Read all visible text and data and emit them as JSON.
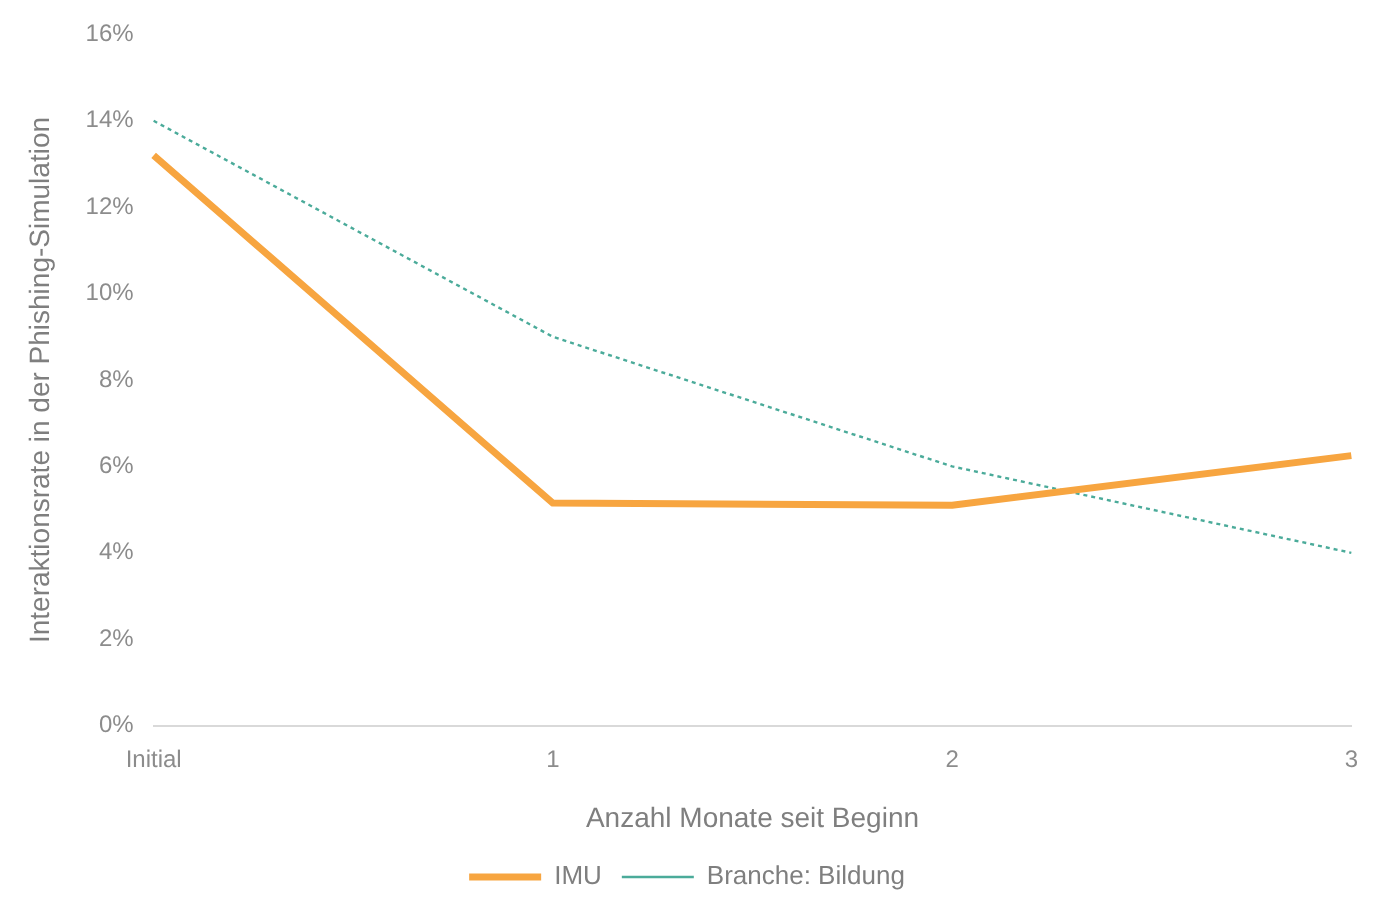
{
  "chart_data": {
    "type": "line",
    "xlabel": "Anzahl Monate seit Beginn",
    "ylabel": "Interaktionsrate in der Phishing-Simulation",
    "categories": [
      "Initial",
      "1",
      "2",
      "3"
    ],
    "series": [
      {
        "name": "IMU",
        "color": "#f7a540",
        "values": [
          13.2,
          5.15,
          5.1,
          6.25
        ],
        "line_style": "solid"
      },
      {
        "name": "Branche: Bildung",
        "color": "#4bab9a",
        "values": [
          14,
          9,
          6,
          4
        ],
        "line_style": "dotted"
      }
    ],
    "ylim": [
      0,
      16
    ],
    "yticks": [
      {
        "value": 0,
        "label": "0%"
      },
      {
        "value": 2,
        "label": "2%"
      },
      {
        "value": 4,
        "label": "4%"
      },
      {
        "value": 6,
        "label": "6%"
      },
      {
        "value": 8,
        "label": "8%"
      },
      {
        "value": 10,
        "label": "10%"
      },
      {
        "value": 12,
        "label": "12%"
      },
      {
        "value": 14,
        "label": "14%"
      },
      {
        "value": 16,
        "label": "16%"
      }
    ],
    "grid": false,
    "legend": "bottom",
    "marker": "none"
  }
}
